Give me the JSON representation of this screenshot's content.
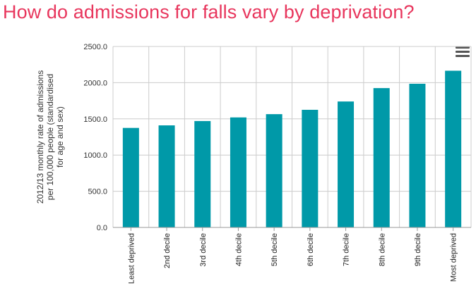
{
  "header": {
    "title": "How do admissions for falls vary by deprivation?"
  },
  "colors": {
    "title": "#e8365d",
    "bar": "#0099a8",
    "grid": "#cccccc"
  },
  "toolbar": {
    "menu_icon": "hamburger-menu-icon"
  },
  "chart_data": {
    "type": "bar",
    "title": "",
    "xlabel": "",
    "ylabel": "2012/13 monthly rate of admissions per 100,000 people (standardised for age and sex)",
    "ylabel_lines": [
      "2012/13 monthly rate of admissions",
      "per 100,000 people (standardised",
      "for age and sex)"
    ],
    "categories": [
      "Least deprived",
      "2nd decile",
      "3rd decile",
      "4th decile",
      "5th decile",
      "6th decile",
      "7th decile",
      "8th decile",
      "9th decile",
      "Most deprived"
    ],
    "values": [
      1375,
      1410,
      1470,
      1520,
      1565,
      1625,
      1740,
      1925,
      1985,
      2165
    ],
    "ylim": [
      0,
      2500
    ],
    "yticks": [
      "0.0",
      "500.0",
      "1000.0",
      "1500.0",
      "2000.0",
      "2500.0"
    ],
    "grid": true,
    "legend": "none"
  }
}
